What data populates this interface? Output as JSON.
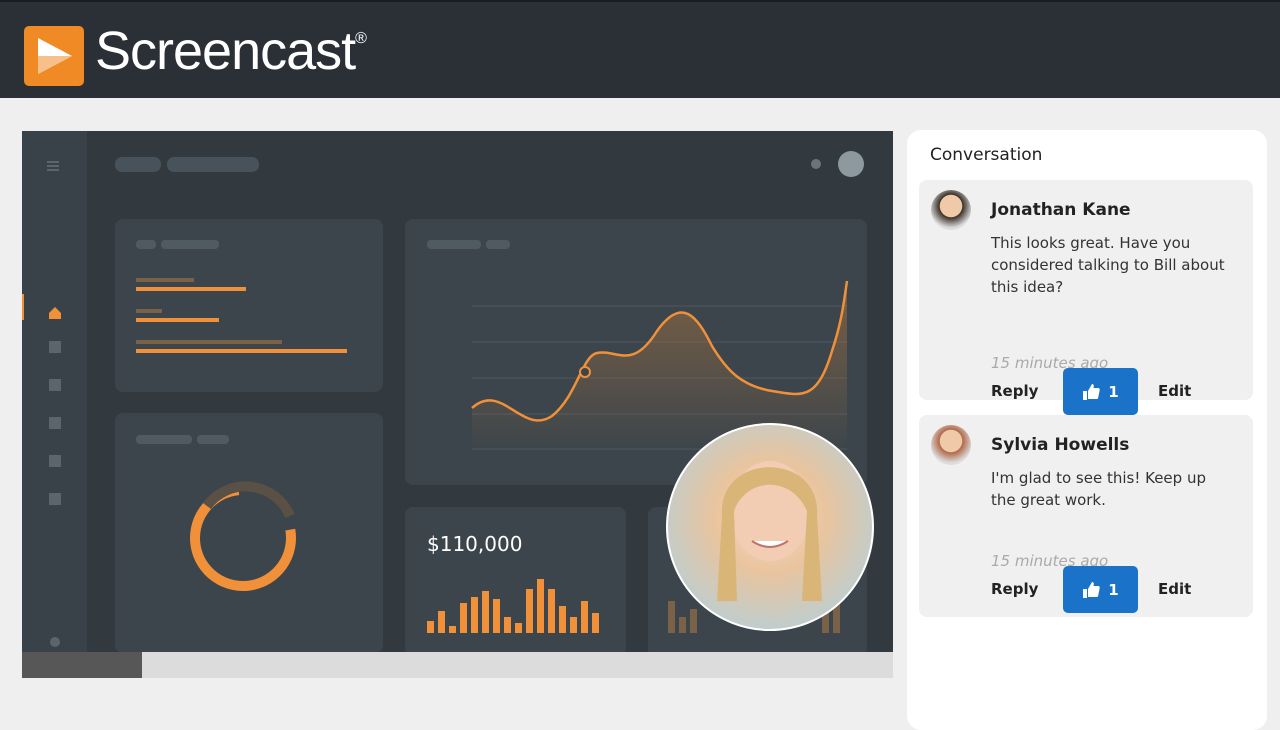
{
  "header": {
    "logo_text": "Screencast",
    "trademark": "®"
  },
  "video": {
    "stat_value": "$110,000"
  },
  "conversation": {
    "title": "Conversation",
    "comments": [
      {
        "author": "Jonathan Kane",
        "text": "This looks great. Have you considered talking to Bill about this idea?",
        "time": "15 minutes ago",
        "reply": "Reply",
        "likes": 1,
        "edit": "Edit"
      },
      {
        "author": "Sylvia Howells",
        "text": "I'm glad to see this! Keep up the great work.",
        "time": "15 minutes ago",
        "reply": "Reply",
        "likes": 1,
        "edit": "Edit"
      }
    ]
  }
}
